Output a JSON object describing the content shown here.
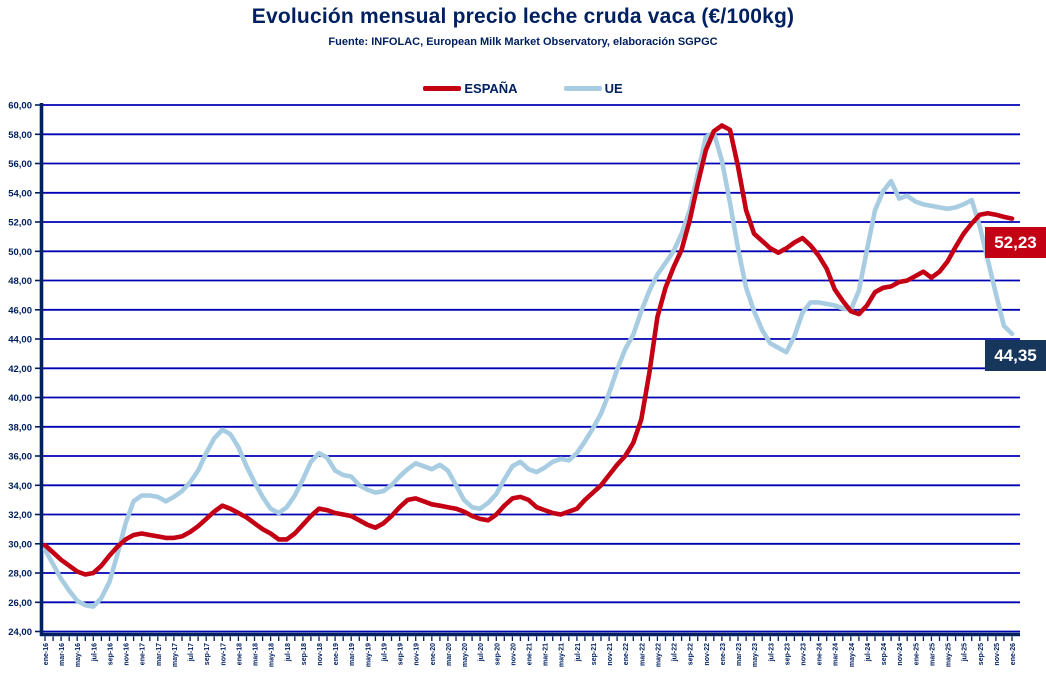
{
  "title": "Evolución mensual precio leche cruda vaca (€/100kg)",
  "subtitle": "Fuente: INFOLAC, European Milk Market Observatory,  elaboración SGPGC",
  "colors": {
    "navy_text": "#002060",
    "axis": "#002060",
    "grid": "#0000B4",
    "espana": "#C40014",
    "ue": "#A8CDE2",
    "espana_box": "#C40014",
    "ue_box": "#16365C"
  },
  "legend": [
    {
      "label": "ESPAÑA",
      "color": "#C40014"
    },
    {
      "label": "UE",
      "color": "#A8CDE2"
    }
  ],
  "end_labels": {
    "espana": "52,23",
    "ue": "44,35"
  },
  "chart_data": {
    "type": "line",
    "title": "Evolución mensual precio leche cruda vaca (€/100kg)",
    "xlabel": "",
    "ylabel": "",
    "ylim": [
      24,
      60
    ],
    "ytick_step": 2,
    "grid": true,
    "legend_position": "top",
    "x_label_every": 2,
    "y_tick_labels": [
      "24,00",
      "26,00",
      "28,00",
      "30,00",
      "32,00",
      "34,00",
      "36,00",
      "38,00",
      "40,00",
      "42,00",
      "44,00",
      "46,00",
      "48,00",
      "50,00",
      "52,00",
      "54,00",
      "56,00",
      "58,00",
      "60,00"
    ],
    "categories": [
      "ene-16",
      "feb-16",
      "mar-16",
      "abr-16",
      "may-16",
      "jun-16",
      "jul-16",
      "ago-16",
      "sep-16",
      "oct-16",
      "nov-16",
      "dic-16",
      "ene-17",
      "feb-17",
      "mar-17",
      "abr-17",
      "may-17",
      "jun-17",
      "jul-17",
      "ago-17",
      "sep-17",
      "oct-17",
      "nov-17",
      "dic-17",
      "ene-18",
      "feb-18",
      "mar-18",
      "abr-18",
      "may-18",
      "jun-18",
      "jul-18",
      "ago-18",
      "sep-18",
      "oct-18",
      "nov-18",
      "dic-18",
      "ene-19",
      "feb-19",
      "mar-19",
      "abr-19",
      "may-19",
      "jun-19",
      "jul-19",
      "ago-19",
      "sep-19",
      "oct-19",
      "nov-19",
      "dic-19",
      "ene-20",
      "feb-20",
      "mar-20",
      "abr-20",
      "may-20",
      "jun-20",
      "jul-20",
      "ago-20",
      "sep-20",
      "oct-20",
      "nov-20",
      "dic-20",
      "ene-21",
      "feb-21",
      "mar-21",
      "abr-21",
      "may-21",
      "jun-21",
      "jul-21",
      "ago-21",
      "sep-21",
      "oct-21",
      "nov-21",
      "dic-21",
      "ene-22",
      "feb-22",
      "mar-22",
      "abr-22",
      "may-22",
      "jun-22",
      "jul-22",
      "ago-22",
      "sep-22",
      "oct-22",
      "nov-22",
      "dic-22",
      "ene-23",
      "feb-23",
      "mar-23",
      "abr-23",
      "may-23",
      "jun-23",
      "jul-23",
      "ago-23",
      "sep-23",
      "oct-23",
      "nov-23",
      "dic-23",
      "ene-24",
      "feb-24",
      "mar-24",
      "abr-24",
      "may-24",
      "jun-24",
      "jul-24",
      "ago-24",
      "sep-24",
      "oct-24",
      "nov-24",
      "dic-24",
      "ene-25",
      "feb-25",
      "mar-25",
      "abr-25",
      "may-25",
      "jun-25",
      "jul-25",
      "ago-25",
      "sep-25",
      "oct-25",
      "nov-25",
      "dic-25",
      "ene-26"
    ],
    "series": [
      {
        "name": "ESPAÑA",
        "color": "#C40014",
        "values": [
          29.9,
          29.4,
          28.9,
          28.5,
          28.1,
          27.9,
          28.0,
          28.5,
          29.2,
          29.8,
          30.3,
          30.6,
          30.7,
          30.6,
          30.5,
          30.4,
          30.4,
          30.5,
          30.8,
          31.2,
          31.7,
          32.2,
          32.6,
          32.4,
          32.1,
          31.8,
          31.4,
          31.0,
          30.7,
          30.3,
          30.3,
          30.7,
          31.3,
          31.9,
          32.4,
          32.3,
          32.1,
          32.0,
          31.9,
          31.6,
          31.3,
          31.1,
          31.4,
          31.9,
          32.5,
          33.0,
          33.1,
          32.9,
          32.7,
          32.6,
          32.5,
          32.4,
          32.2,
          31.9,
          31.7,
          31.6,
          32.0,
          32.6,
          33.1,
          33.2,
          33.0,
          32.5,
          32.3,
          32.1,
          32.0,
          32.2,
          32.4,
          33.0,
          33.5,
          34.0,
          34.7,
          35.4,
          36.0,
          36.9,
          38.5,
          41.7,
          45.5,
          47.5,
          48.9,
          50.1,
          52.1,
          54.6,
          56.9,
          58.2,
          58.6,
          58.3,
          55.8,
          52.8,
          51.2,
          50.7,
          50.2,
          49.9,
          50.2,
          50.6,
          50.9,
          50.4,
          49.7,
          48.8,
          47.4,
          46.6,
          45.9,
          45.7,
          46.3,
          47.2,
          47.5,
          47.6,
          47.9,
          48.0,
          48.3,
          48.6,
          48.2,
          48.6,
          49.3,
          50.3,
          51.2,
          51.9,
          52.5,
          52.6,
          52.5,
          52.35,
          52.23
        ]
      },
      {
        "name": "UE",
        "color": "#A8CDE2",
        "values": [
          29.6,
          28.6,
          27.6,
          26.8,
          26.1,
          25.8,
          25.7,
          26.3,
          27.4,
          29.3,
          31.4,
          32.9,
          33.3,
          33.3,
          33.2,
          32.9,
          33.2,
          33.6,
          34.2,
          35.0,
          36.2,
          37.2,
          37.8,
          37.5,
          36.6,
          35.3,
          34.2,
          33.2,
          32.4,
          32.1,
          32.5,
          33.3,
          34.4,
          35.6,
          36.2,
          35.9,
          35.0,
          34.7,
          34.6,
          34.0,
          33.7,
          33.5,
          33.6,
          34.0,
          34.6,
          35.1,
          35.5,
          35.3,
          35.1,
          35.4,
          35.0,
          34.0,
          33.0,
          32.5,
          32.4,
          32.8,
          33.4,
          34.4,
          35.3,
          35.6,
          35.1,
          34.9,
          35.2,
          35.6,
          35.8,
          35.7,
          36.2,
          37.0,
          37.9,
          38.9,
          40.3,
          41.9,
          43.3,
          44.3,
          45.9,
          47.3,
          48.4,
          49.2,
          50.0,
          51.2,
          52.8,
          55.3,
          57.8,
          58.1,
          56.2,
          53.3,
          50.2,
          47.5,
          45.9,
          44.6,
          43.7,
          43.4,
          43.1,
          44.2,
          45.8,
          46.5,
          46.5,
          46.4,
          46.3,
          46.1,
          46.0,
          47.3,
          50.1,
          52.8,
          54.1,
          54.8,
          53.6,
          53.8,
          53.4,
          53.2,
          53.1,
          53.0,
          52.9,
          53.0,
          53.2,
          53.5,
          51.7,
          49.4,
          47.1,
          44.9,
          44.35
        ]
      }
    ]
  }
}
